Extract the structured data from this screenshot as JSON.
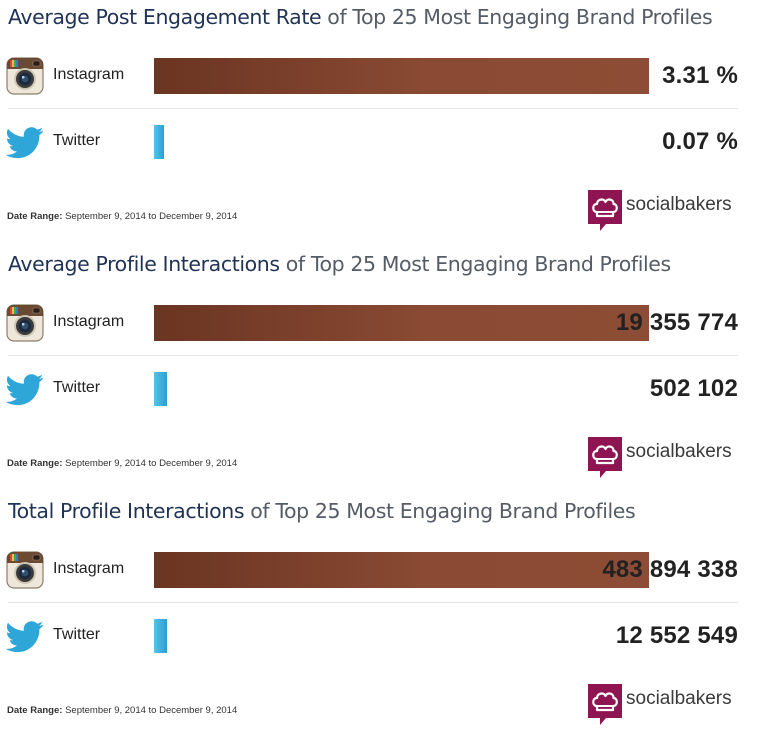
{
  "colors": {
    "instagram_bar": "#7d4330",
    "twitter_bar": "#2fa6d8",
    "title_highlight": "#1f3356",
    "title_rest": "#555c66",
    "brand_logo": "#8e1552"
  },
  "brand": {
    "name": "socialbakers",
    "icon": "chef-hat-speech-bubble-icon"
  },
  "date_range": {
    "label": "Date Range:",
    "value": "September 9, 2014 to December 9, 2014"
  },
  "chart_data": [
    {
      "type": "bar",
      "title": "Average Post Engagement Rate of Top 25 Most Engaging Brand Profiles",
      "title_highlight": "Average Post Engagement Rate",
      "title_rest": " of Top 25 Most Engaging Brand Profiles",
      "categories": [
        "Instagram",
        "Twitter"
      ],
      "values": [
        3.31,
        0.07
      ],
      "value_labels": [
        "3.31 %",
        "0.07 %"
      ],
      "unit": "%"
    },
    {
      "type": "bar",
      "title": "Average Profile Interactions of Top 25 Most Engaging Brand Profiles",
      "title_highlight": "Average Profile Interactions",
      "title_rest": " of Top 25 Most Engaging Brand Profiles",
      "categories": [
        "Instagram",
        "Twitter"
      ],
      "values": [
        19355774,
        502102
      ],
      "value_labels": [
        "19 355 774",
        "502 102"
      ]
    },
    {
      "type": "bar",
      "title": "Total Profile Interactions of Top 25 Most Engaging Brand Profiles",
      "title_highlight": "Total Profile Interactions",
      "title_rest": " of Top 25 Most Engaging Brand Profiles",
      "categories": [
        "Instagram",
        "Twitter"
      ],
      "values": [
        483894338,
        12552549
      ],
      "value_labels": [
        "483 894 338",
        "12 552 549"
      ]
    }
  ]
}
